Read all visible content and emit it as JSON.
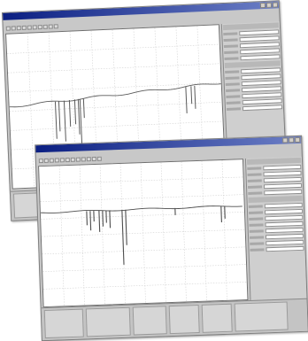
{
  "back_window": {
    "title": "",
    "menu": [],
    "panel_rows": 12,
    "trace_color": "#5a5a5a"
  },
  "front_window": {
    "title": "",
    "menu": [],
    "panel_rows": 13,
    "trace_color": "#4d4d4d"
  }
}
